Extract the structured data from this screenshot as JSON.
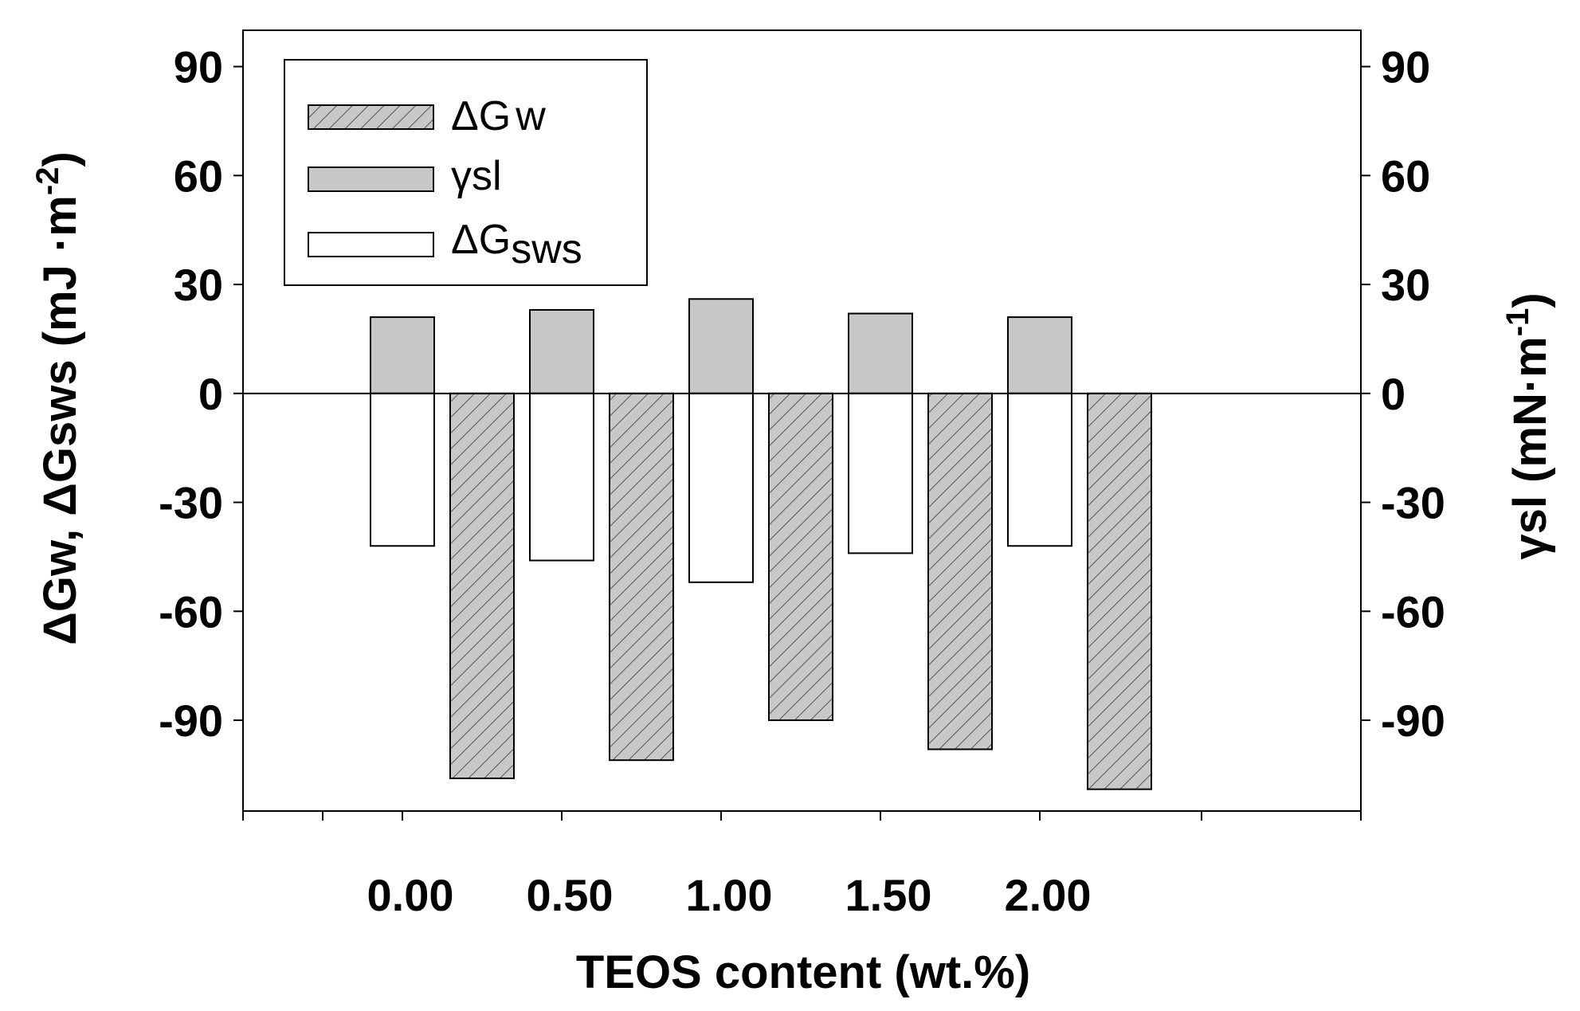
{
  "chart_data": {
    "type": "bar",
    "categories": [
      "0.00",
      "0.50",
      "1.00",
      "1.50",
      "2.00"
    ],
    "series": [
      {
        "name": "ΔGw",
        "values": [
          -106,
          -101,
          -90,
          -98,
          -109
        ],
        "pattern": "hatched"
      },
      {
        "name": "γsl",
        "values": [
          21,
          23,
          26,
          22,
          21
        ],
        "pattern": "solid"
      },
      {
        "name": "ΔGsws",
        "values": [
          -42,
          -46,
          -52,
          -44,
          -42
        ],
        "pattern": "open"
      }
    ],
    "xlabel": "TEOS content (wt.%)",
    "ylabel_left": "ΔGw, ΔGsws (mJ ·m-2)",
    "ylabel_right": "γsl (mN·m-1)",
    "ylim": [
      -115,
      100
    ],
    "yticks": [
      -90,
      -60,
      -30,
      0,
      30,
      60,
      90
    ],
    "legend_position": "top-left",
    "colors": {
      "fill": "#c8c8c8",
      "stroke": "#000000",
      "hatch": "#555555",
      "background": "#ffffff"
    }
  }
}
